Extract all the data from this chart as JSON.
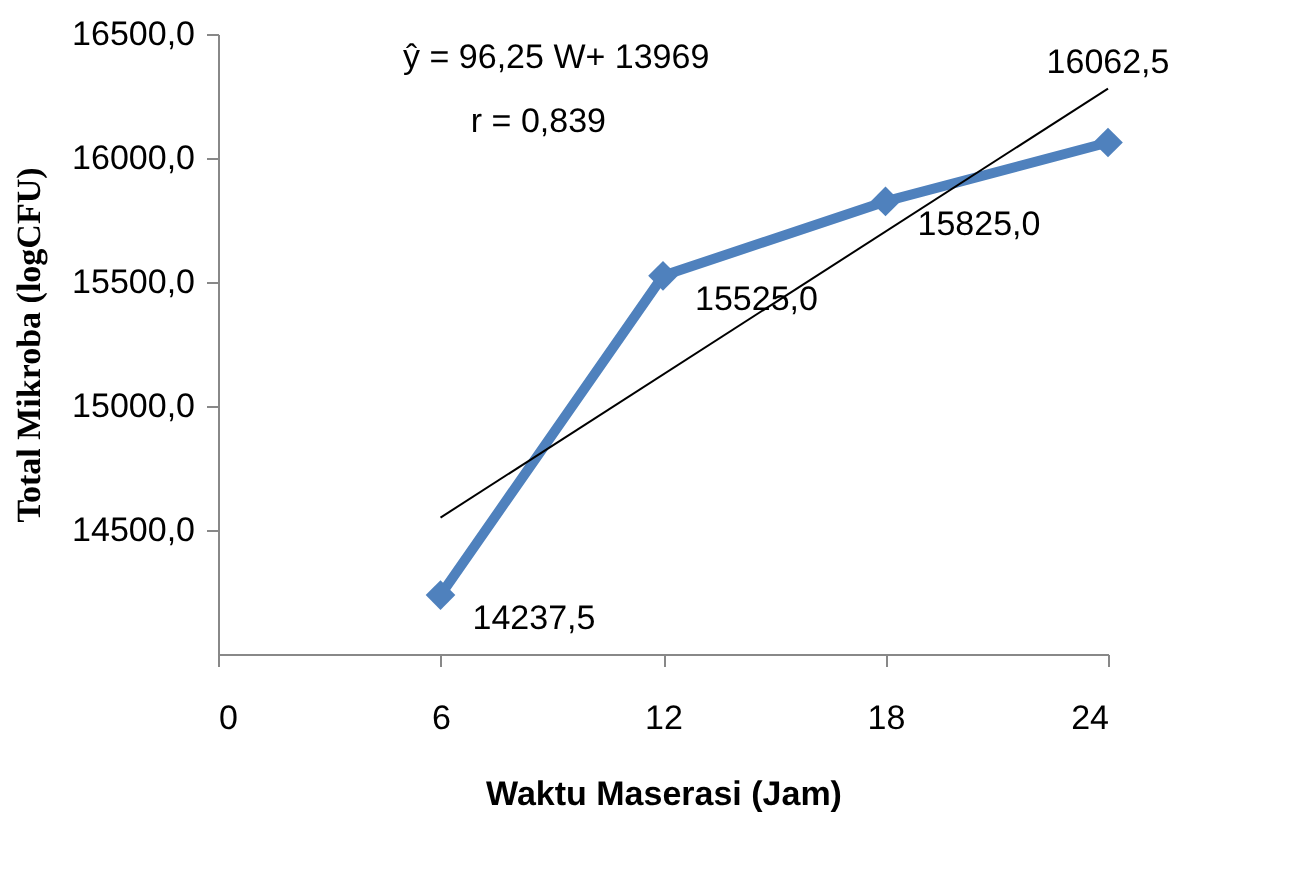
{
  "chart_data": {
    "type": "line",
    "xlabel": "Waktu Maserasi (Jam)",
    "ylabel": "Total Mikroba (logCFU)",
    "x": [
      6,
      12,
      18,
      24
    ],
    "series": [
      {
        "color": "#4f81bd",
        "values": [
          14237.5,
          15525.0,
          15825.0,
          16062.5
        ],
        "value_labels": [
          "14237,5",
          "15525,0",
          "15825,0",
          "16062,5"
        ],
        "marker": "diamond",
        "line_style": "solid"
      },
      {
        "type": "line",
        "x": [
          6,
          24
        ],
        "color": "#000000",
        "values": [
          14550,
          16280
        ],
        "marker": "none",
        "line_style": "solid"
      }
    ],
    "annotations": [
      "ŷ = 96,25 W+ 13969",
      "r = 0,839"
    ],
    "xlim": [
      0,
      24
    ],
    "xticks": [
      0,
      6,
      12,
      18,
      24
    ],
    "ylim": [
      14000,
      16500
    ],
    "yticks": [
      {
        "value": 14500,
        "label": "14500,0"
      },
      {
        "value": 15000,
        "label": "15000,0"
      },
      {
        "value": 15500,
        "label": "15500,0"
      },
      {
        "value": 16000,
        "label": "16000,0"
      },
      {
        "value": 16500,
        "label": "16500,0"
      }
    ],
    "grid": false
  }
}
